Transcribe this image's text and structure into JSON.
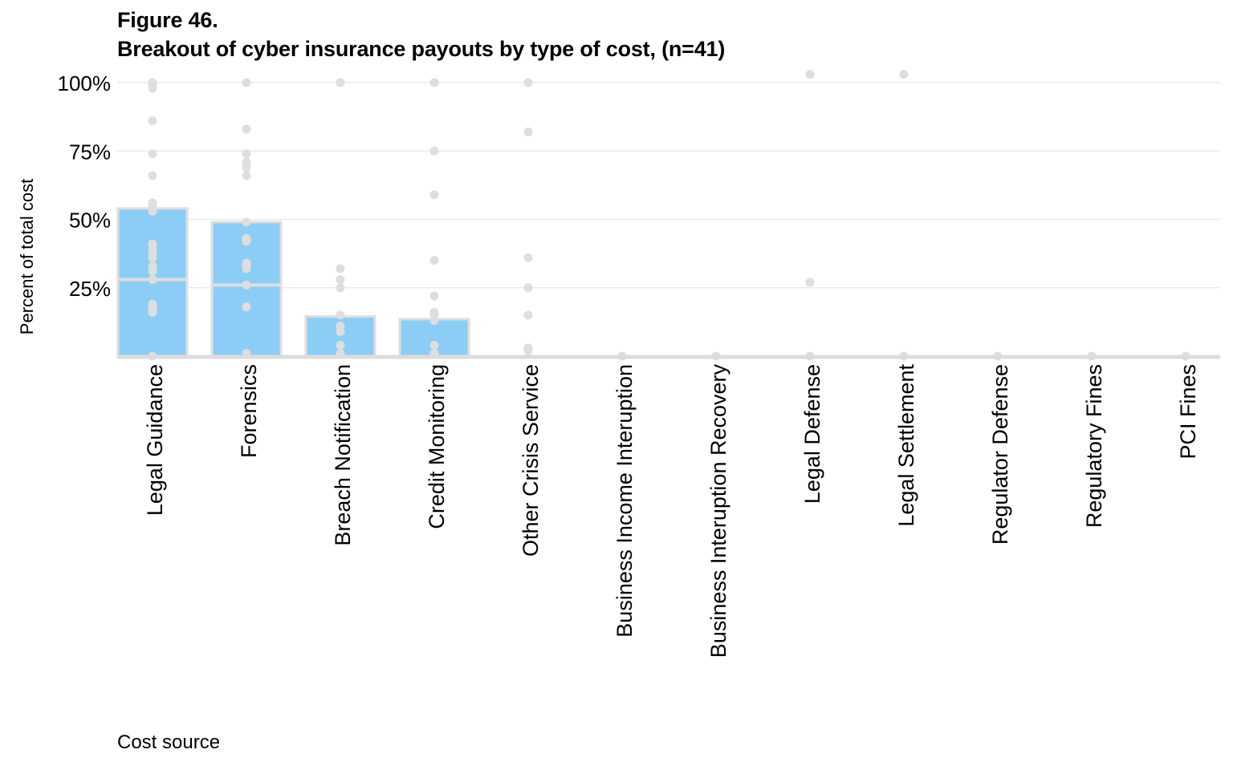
{
  "figure_label": "Figure 46.",
  "title": "Breakout of cyber insurance payouts by type of cost, (n=41)",
  "colors": {
    "bar": "#8ccdf5",
    "dot": "#dedede",
    "median": "#dedede",
    "grid": "#e8e8e8",
    "axis": "#dcdcdc"
  },
  "chart_data": {
    "type": "bar",
    "title": "Breakout of cyber insurance payouts by type of cost, (n=41)",
    "xlabel": "Cost source",
    "ylabel": "Percent of total cost",
    "ylim": [
      0,
      1
    ],
    "yticks": [
      0.25,
      0.5,
      0.75,
      1.0
    ],
    "ytick_labels": [
      "25%",
      "50%",
      "75%",
      "100%"
    ],
    "grid": true,
    "categories": [
      "Legal Guidance",
      "Forensics",
      "Breach Notification",
      "Credit Monitoring",
      "Other Crisis Service",
      "Business Income Interuption",
      "Business Interuption Recovery",
      "Legal Defense",
      "Legal Settlement",
      "Regulator Defense",
      "Regulatory Fines",
      "PCI Fines"
    ],
    "values": [
      0.54,
      0.49,
      0.145,
      0.135,
      0,
      0,
      0,
      0,
      0,
      0,
      0,
      0
    ],
    "medians": [
      0.28,
      0.26,
      null,
      null,
      null,
      null,
      null,
      null,
      null,
      null,
      null,
      null
    ],
    "points": [
      [
        1.0,
        0.99,
        0.98,
        0.86,
        0.74,
        0.66,
        0.56,
        0.55,
        0.53,
        0.41,
        0.39,
        0.37,
        0.36,
        0.33,
        0.31,
        0.28,
        0.19,
        0.18,
        0.17,
        0.16,
        0.0
      ],
      [
        1.0,
        0.83,
        0.74,
        0.71,
        0.69,
        0.66,
        0.49,
        0.43,
        0.42,
        0.34,
        0.33,
        0.32,
        0.26,
        0.18,
        0.01
      ],
      [
        1.0,
        0.32,
        0.28,
        0.25,
        0.15,
        0.11,
        0.09,
        0.04,
        0.01
      ],
      [
        1.0,
        0.75,
        0.59,
        0.35,
        0.22,
        0.16,
        0.15,
        0.13,
        0.04,
        0.01
      ],
      [
        1.0,
        0.82,
        0.36,
        0.25,
        0.15,
        0.03,
        0.02
      ],
      [
        0.0
      ],
      [
        0.0
      ],
      [
        1.03,
        0.27,
        0.0
      ],
      [
        1.03,
        0.0
      ],
      [
        0.0
      ],
      [
        0.0
      ],
      [
        0.0
      ]
    ]
  }
}
